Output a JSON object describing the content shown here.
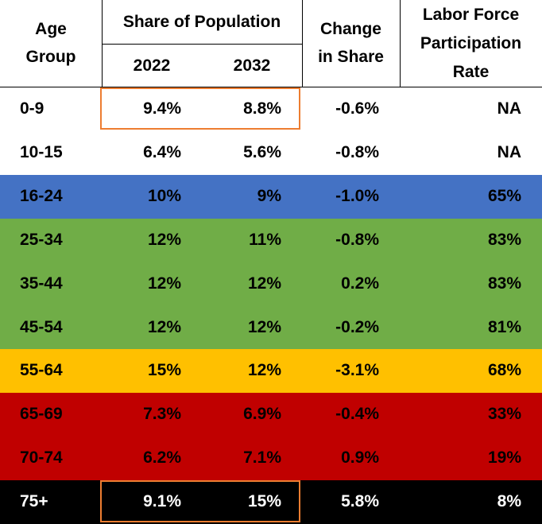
{
  "header": {
    "age_group": "Age Group",
    "share_of_population": "Share of Population",
    "years": [
      "2022",
      "2032"
    ],
    "change_in_share": "Change in Share",
    "labor_force": "Labor Force Participation Rate"
  },
  "table": {
    "rows": [
      {
        "cells": [
          "0-9",
          "9.4%",
          "8.8%",
          "-0.6%",
          "NA"
        ],
        "fill": "#ffffff",
        "text_color": "#000000",
        "highlight": true
      },
      {
        "cells": [
          "10-15",
          "6.4%",
          "5.6%",
          "-0.8%",
          "NA"
        ],
        "fill": "#ffffff",
        "text_color": "#000000",
        "highlight": false
      },
      {
        "cells": [
          "16-24",
          "10%",
          "9%",
          "-1.0%",
          "65%"
        ],
        "fill": "#4472c4",
        "text_color": "#000000",
        "highlight": false
      },
      {
        "cells": [
          "25-34",
          "12%",
          "11%",
          "-0.8%",
          "83%"
        ],
        "fill": "#70ad47",
        "text_color": "#000000",
        "highlight": false
      },
      {
        "cells": [
          "35-44",
          "12%",
          "12%",
          "0.2%",
          "83%"
        ],
        "fill": "#70ad47",
        "text_color": "#000000",
        "highlight": false
      },
      {
        "cells": [
          "45-54",
          "12%",
          "12%",
          "-0.2%",
          "81%"
        ],
        "fill": "#70ad47",
        "text_color": "#000000",
        "highlight": false
      },
      {
        "cells": [
          "55-64",
          "15%",
          "12%",
          "-3.1%",
          "68%"
        ],
        "fill": "#ffc000",
        "text_color": "#000000",
        "highlight": false
      },
      {
        "cells": [
          "65-69",
          "7.3%",
          "6.9%",
          "-0.4%",
          "33%"
        ],
        "fill": "#c00000",
        "text_color": "#000000",
        "highlight": false
      },
      {
        "cells": [
          "70-74",
          "6.2%",
          "7.1%",
          "0.9%",
          "19%"
        ],
        "fill": "#c00000",
        "text_color": "#000000",
        "highlight": false
      },
      {
        "cells": [
          "75+",
          "9.1%",
          "15%",
          "5.8%",
          "8%"
        ],
        "fill": "#000000",
        "text_color": "#ffffff",
        "highlight": true
      }
    ],
    "highlight_color": "#ed7d31"
  }
}
